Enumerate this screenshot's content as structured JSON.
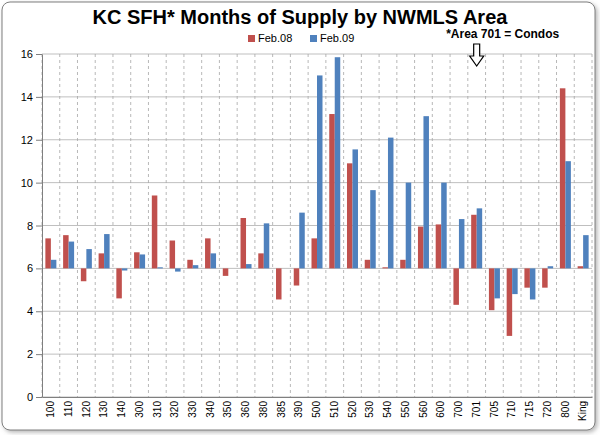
{
  "chart_data": {
    "type": "bar",
    "title": "KC SFH* Months of Supply by NWMLS Area",
    "annotation": "*Area 701 = Condos",
    "categories": [
      "100",
      "110",
      "120",
      "130",
      "140",
      "300",
      "310",
      "320",
      "330",
      "340",
      "350",
      "360",
      "380",
      "385",
      "390",
      "500",
      "510",
      "520",
      "530",
      "540",
      "550",
      "560",
      "600",
      "700",
      "701",
      "705",
      "710",
      "715",
      "720",
      "800",
      "King"
    ],
    "series": [
      {
        "name": "Feb.08",
        "color": "#c0504d",
        "values": [
          7.4,
          7.55,
          5.4,
          6.7,
          4.6,
          6.75,
          9.4,
          7.3,
          6.4,
          7.4,
          5.65,
          8.35,
          6.7,
          4.55,
          5.2,
          7.4,
          13.2,
          10.9,
          6.4,
          6.05,
          6.4,
          7.95,
          8.05,
          4.3,
          8.5,
          4.05,
          2.85,
          5.1,
          5.1,
          14.4,
          6.1
        ]
      },
      {
        "name": "Feb.09",
        "color": "#4f81bd",
        "values": [
          6.4,
          7.25,
          6.9,
          7.6,
          5.9,
          6.65,
          6.05,
          5.85,
          6.15,
          6.7,
          6.0,
          6.2,
          8.1,
          6.0,
          8.6,
          15.0,
          15.85,
          11.55,
          9.65,
          12.1,
          10.0,
          13.1,
          10.0,
          8.3,
          8.8,
          4.6,
          4.8,
          4.55,
          6.1,
          11.0,
          7.55
        ]
      }
    ],
    "ylim": [
      0,
      16
    ],
    "yticks": [
      0,
      2,
      4,
      6,
      8,
      10,
      12,
      14,
      16
    ],
    "grid": true,
    "legend": "top"
  }
}
